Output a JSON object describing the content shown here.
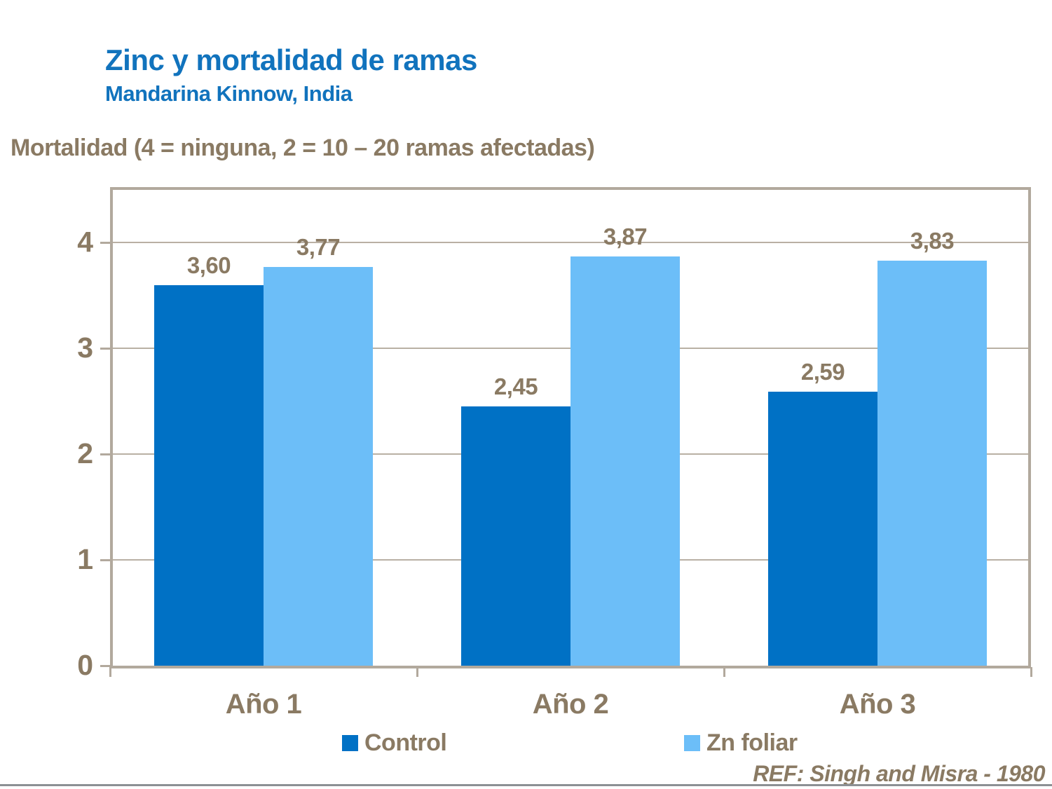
{
  "header": {
    "title": "Zinc y mortalidad de ramas",
    "subtitle": "Mandarina Kinnow, India"
  },
  "axis_caption": "Mortalidad (4 = ninguna, 2 = 10 – 20 ramas afectadas)",
  "footer": {
    "reference": "REF: Singh and Misra - 1980"
  },
  "colors": {
    "title_blue": "#1173BD",
    "text_brown": "#8A7A63",
    "frame_taupe": "#B2A99D",
    "grid_taupe": "#B9B0A4",
    "control_blue": "#0071C5",
    "zn_blue": "#6CBEF8",
    "bottom_line": "#8C9094"
  },
  "chart_data": {
    "type": "bar",
    "title": "Zinc y mortalidad de ramas",
    "subtitle": "Mandarina Kinnow, India",
    "categories": [
      "Año 1",
      "Año 2",
      "Año 3"
    ],
    "series": [
      {
        "name": "Control",
        "color": "#0071C5",
        "values": [
          3.6,
          2.45,
          2.59
        ],
        "value_labels": [
          "3,60",
          "2,45",
          "2,59"
        ]
      },
      {
        "name": "Zn foliar",
        "color": "#6CBEF8",
        "values": [
          3.77,
          3.87,
          3.83
        ],
        "value_labels": [
          "3,77",
          "3,87",
          "3,83"
        ]
      }
    ],
    "ylabel": "Mortalidad (4 = ninguna, 2 = 10 – 20 ramas afectadas)",
    "ylim": [
      0,
      4.5
    ],
    "yticks": [
      0,
      1,
      2,
      3,
      4
    ],
    "ytick_labels": [
      "0",
      "1",
      "2",
      "3",
      "4"
    ],
    "grid": true,
    "legend_position": "bottom"
  }
}
